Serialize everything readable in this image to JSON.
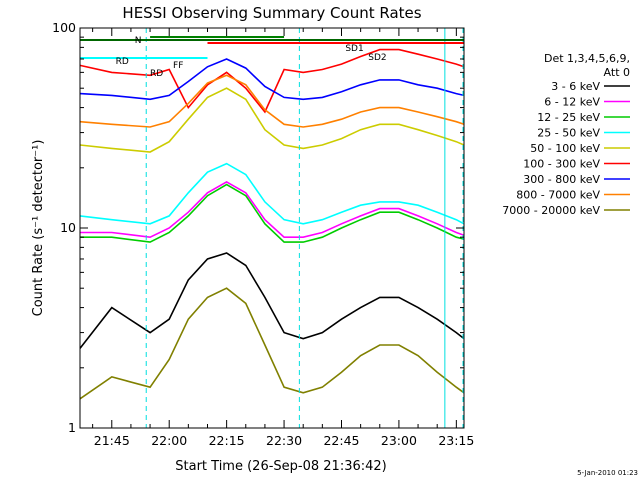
{
  "chart_data": {
    "type": "line",
    "title": "HESSI Observing Summary Count Rates",
    "xlabel": "Start Time (26-Sep-08 21:36:42)",
    "ylabel": "Count Rate (s⁻¹ detector⁻¹)",
    "y_scale": "log",
    "ylim": [
      1,
      100
    ],
    "y_tick_labels": [
      "1",
      "10",
      "100"
    ],
    "xlim": [
      "21:36:42",
      "23:17:00"
    ],
    "x_tick_labels": [
      "21:45",
      "22:00",
      "22:15",
      "22:30",
      "22:45",
      "23:00",
      "23:15"
    ],
    "x_ticks_min": [
      1305,
      1320,
      1335,
      1350,
      1365,
      1380,
      1395
    ],
    "grid": false,
    "legend_title_line1": "Det 1,3,4,5,6,9,",
    "legend_title_line2": "Att 0",
    "legend_position": "right",
    "flag_labels": {
      "n": "N",
      "sd1": "SD1",
      "sd2": "SD2",
      "rd": "RD",
      "ff": "FF",
      "rd2": "RD"
    },
    "vertical_markers_min": [
      1314,
      1354,
      1392,
      1410
    ],
    "x_min": [
      1296.7,
      1305,
      1315,
      1320,
      1325,
      1330,
      1335,
      1340,
      1345,
      1350,
      1355,
      1360,
      1365,
      1370,
      1375,
      1380,
      1385,
      1390,
      1395,
      1397
    ],
    "series": [
      {
        "name": "3 - 6 keV",
        "color": "#000000",
        "values": [
          2.5,
          4.0,
          3.0,
          3.5,
          5.5,
          7.0,
          7.5,
          6.5,
          4.5,
          3.0,
          2.8,
          3.0,
          3.5,
          4.0,
          4.5,
          4.5,
          4.0,
          3.5,
          3.0,
          2.8
        ]
      },
      {
        "name": "6 - 12 keV",
        "color": "#ff00ff",
        "values": [
          9.5,
          9.5,
          9.0,
          10.0,
          12.0,
          15.0,
          17.0,
          15.0,
          11.0,
          9.0,
          9.0,
          9.5,
          10.5,
          11.5,
          12.5,
          12.5,
          11.5,
          10.5,
          9.5,
          9.2
        ]
      },
      {
        "name": "12 - 25 keV",
        "color": "#00cc00",
        "values": [
          9.0,
          9.0,
          8.5,
          9.5,
          11.5,
          14.5,
          16.5,
          14.5,
          10.5,
          8.5,
          8.5,
          9.0,
          10.0,
          11.0,
          12.0,
          12.0,
          11.0,
          10.0,
          9.0,
          8.8
        ]
      },
      {
        "name": "25 - 50 keV",
        "color": "#00ffff",
        "values": [
          11.5,
          11.0,
          10.5,
          11.5,
          15.0,
          19.0,
          21.0,
          18.5,
          13.5,
          11.0,
          10.5,
          11.0,
          12.0,
          13.0,
          13.5,
          13.5,
          13.0,
          12.0,
          11.0,
          10.5
        ]
      },
      {
        "name": "50 - 100 keV",
        "color": "#cccc00",
        "values": [
          26.0,
          25.0,
          24.0,
          27.0,
          35.0,
          45.0,
          50.0,
          44.0,
          31.0,
          26.0,
          25.0,
          26.0,
          28.0,
          31.0,
          33.0,
          33.0,
          31.0,
          29.0,
          27.0,
          26.0
        ]
      },
      {
        "name": "100 - 300 keV",
        "color": "#ff0000",
        "values": [
          65.0,
          60.0,
          58.0,
          62.0,
          40.0,
          52.0,
          60.0,
          50.0,
          38.0,
          62.0,
          60.0,
          62.0,
          66.0,
          72.0,
          78.0,
          78.0,
          74.0,
          70.0,
          66.0,
          64.0
        ]
      },
      {
        "name": "300 - 800 keV",
        "color": "#0000ff",
        "values": [
          47.0,
          46.0,
          44.0,
          46.0,
          54.0,
          64.0,
          70.0,
          63.0,
          51.0,
          45.0,
          44.0,
          45.0,
          48.0,
          52.0,
          55.0,
          55.0,
          52.0,
          50.0,
          47.0,
          46.0
        ]
      },
      {
        "name": "800 - 7000 keV",
        "color": "#ff8000",
        "values": [
          34.0,
          33.0,
          32.0,
          34.0,
          42.0,
          53.0,
          58.0,
          52.0,
          39.0,
          33.0,
          32.0,
          33.0,
          35.0,
          38.0,
          40.0,
          40.0,
          38.0,
          36.0,
          34.0,
          33.0
        ]
      },
      {
        "name": "7000 - 20000 keV",
        "color": "#808000",
        "values": [
          1.4,
          1.8,
          1.6,
          2.2,
          3.5,
          4.5,
          5.0,
          4.2,
          2.6,
          1.6,
          1.5,
          1.6,
          1.9,
          2.3,
          2.6,
          2.6,
          2.3,
          1.9,
          1.6,
          1.5
        ]
      }
    ]
  },
  "footer": {
    "date_stamp": "5-Jan-2010 01:23"
  }
}
